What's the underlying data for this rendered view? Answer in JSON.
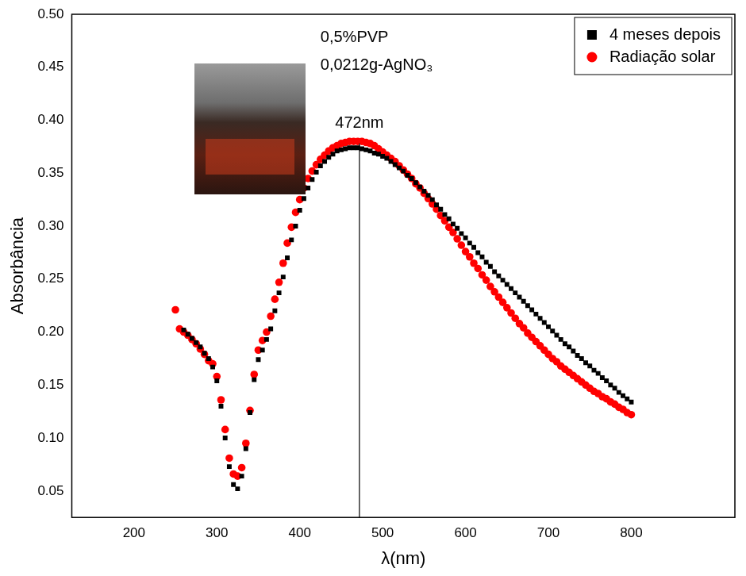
{
  "chart_data": {
    "type": "scatter",
    "x_label": "λ(nm)",
    "y_label": "Absorbância",
    "x": [
      250,
      255,
      260,
      265,
      270,
      275,
      280,
      285,
      290,
      295,
      300,
      305,
      310,
      315,
      320,
      325,
      330,
      335,
      340,
      345,
      350,
      355,
      360,
      365,
      370,
      375,
      380,
      385,
      390,
      395,
      400,
      405,
      410,
      415,
      420,
      425,
      430,
      435,
      440,
      445,
      450,
      455,
      460,
      465,
      470,
      475,
      480,
      485,
      490,
      495,
      500,
      505,
      510,
      515,
      520,
      525,
      530,
      535,
      540,
      545,
      550,
      555,
      560,
      565,
      570,
      575,
      580,
      585,
      590,
      595,
      600,
      605,
      610,
      615,
      620,
      625,
      630,
      635,
      640,
      645,
      650,
      655,
      660,
      665,
      670,
      675,
      680,
      685,
      690,
      695,
      700,
      705,
      710,
      715,
      720,
      725,
      730,
      735,
      740,
      745,
      750,
      755,
      760,
      765,
      770,
      775,
      780,
      785,
      790,
      795,
      800
    ],
    "series": [
      {
        "name": "4 meses depois",
        "color": "#000000",
        "marker": "square",
        "values": [
          null,
          null,
          0.202,
          0.198,
          0.194,
          0.19,
          0.186,
          0.18,
          0.175,
          0.167,
          0.154,
          0.13,
          0.1,
          0.073,
          0.056,
          0.052,
          0.064,
          0.09,
          0.124,
          0.155,
          0.174,
          0.183,
          0.193,
          0.203,
          0.22,
          0.237,
          0.252,
          0.27,
          0.287,
          0.3,
          0.315,
          0.326,
          0.336,
          0.344,
          0.351,
          0.357,
          0.361,
          0.365,
          0.368,
          0.371,
          0.372,
          0.373,
          0.374,
          0.374,
          0.374,
          0.373,
          0.372,
          0.371,
          0.369,
          0.368,
          0.366,
          0.364,
          0.361,
          0.358,
          0.355,
          0.352,
          0.348,
          0.345,
          0.341,
          0.337,
          0.333,
          0.329,
          0.325,
          0.32,
          0.316,
          0.311,
          0.307,
          0.302,
          0.298,
          0.293,
          0.289,
          0.284,
          0.28,
          0.275,
          0.271,
          0.266,
          0.262,
          0.257,
          0.253,
          0.249,
          0.245,
          0.241,
          0.237,
          0.233,
          0.229,
          0.225,
          0.221,
          0.217,
          0.213,
          0.209,
          0.205,
          0.201,
          0.197,
          0.193,
          0.189,
          0.186,
          0.182,
          0.178,
          0.175,
          0.171,
          0.168,
          0.164,
          0.161,
          0.157,
          0.154,
          0.15,
          0.147,
          0.143,
          0.14,
          0.137,
          0.134
        ]
      },
      {
        "name": "Radiação solar",
        "color": "#ff0000",
        "marker": "circle",
        "values": [
          0.221,
          0.203,
          0.2,
          0.197,
          0.193,
          0.189,
          0.184,
          0.179,
          0.173,
          0.17,
          0.158,
          0.136,
          0.108,
          0.081,
          0.066,
          0.064,
          0.072,
          0.095,
          0.126,
          0.16,
          0.183,
          0.192,
          0.2,
          0.215,
          0.231,
          0.247,
          0.265,
          0.284,
          0.299,
          0.313,
          0.325,
          0.336,
          0.345,
          0.352,
          0.358,
          0.363,
          0.367,
          0.371,
          0.374,
          0.376,
          0.378,
          0.379,
          0.38,
          0.38,
          0.38,
          0.38,
          0.379,
          0.378,
          0.376,
          0.373,
          0.37,
          0.367,
          0.364,
          0.361,
          0.357,
          0.353,
          0.349,
          0.345,
          0.34,
          0.336,
          0.331,
          0.326,
          0.321,
          0.316,
          0.31,
          0.305,
          0.299,
          0.294,
          0.288,
          0.282,
          0.276,
          0.271,
          0.265,
          0.26,
          0.254,
          0.249,
          0.243,
          0.238,
          0.233,
          0.228,
          0.223,
          0.218,
          0.213,
          0.208,
          0.204,
          0.199,
          0.195,
          0.191,
          0.187,
          0.183,
          0.179,
          0.175,
          0.172,
          0.168,
          0.165,
          0.162,
          0.159,
          0.156,
          0.153,
          0.15,
          0.147,
          0.144,
          0.142,
          0.139,
          0.137,
          0.134,
          0.132,
          0.129,
          0.127,
          0.124,
          0.122
        ]
      }
    ],
    "xlim": [
      125,
      925
    ],
    "xticks": [
      200,
      300,
      400,
      500,
      600,
      700,
      800
    ],
    "ylim": [
      0.025,
      0.5
    ],
    "yticks": [
      0.05,
      {
        "value": 0.1,
        "label": "0.10"
      },
      0.15,
      {
        "value": 0.2,
        "label": "0.20"
      },
      0.25,
      {
        "value": 0.3,
        "label": "0.30"
      },
      0.35,
      {
        "value": 0.4,
        "label": "0.40"
      },
      0.45,
      {
        "value": 0.5,
        "label": "0.50"
      }
    ],
    "grid": false,
    "legend": "upper right",
    "annotations": [
      {
        "text": "0,5%PVP",
        "x": 425,
        "y": 0.478
      },
      {
        "text": "0,0212g-AgNO₃",
        "x": 425,
        "y": 0.452
      },
      {
        "text": "472nm",
        "x": 472,
        "y": 0.397
      }
    ],
    "vlines": [
      {
        "x": 472,
        "ymax": 0.378
      }
    ]
  }
}
